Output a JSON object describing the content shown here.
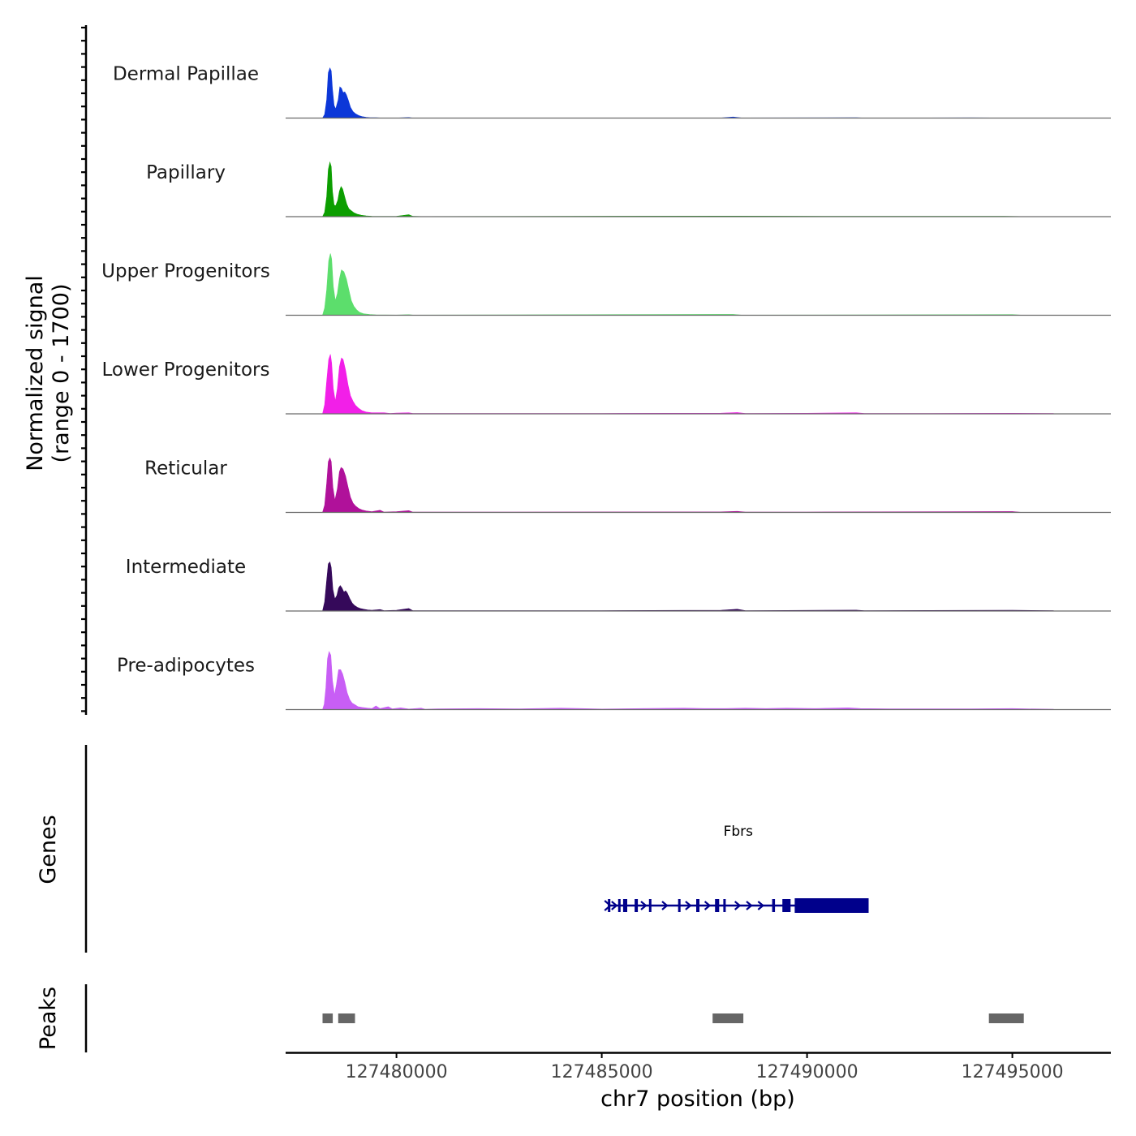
{
  "chart_data": {
    "type": "area",
    "title": "",
    "ylabel_line1": "Normalized signal",
    "ylabel_line2": "(range 0 - 1700)",
    "ylim": [
      0,
      1700
    ],
    "xlabel": "chr7 position (bp)",
    "xlim": [
      127477300,
      127497400
    ],
    "x_ticks": [
      127480000,
      127485000,
      127490000,
      127495000
    ],
    "x_tick_labels": [
      "127480000",
      "127485000",
      "127490000",
      "127495000"
    ],
    "tracks": [
      {
        "name": "Dermal Papillae",
        "color": "#0c37d8",
        "points": [
          [
            127478200,
            0
          ],
          [
            127478250,
            100
          ],
          [
            127478300,
            500
          ],
          [
            127478340,
            1250
          ],
          [
            127478380,
            1380
          ],
          [
            127478410,
            1300
          ],
          [
            127478440,
            800
          ],
          [
            127478480,
            350
          ],
          [
            127478520,
            250
          ],
          [
            127478580,
            500
          ],
          [
            127478620,
            860
          ],
          [
            127478660,
            820
          ],
          [
            127478700,
            700
          ],
          [
            127478740,
            720
          ],
          [
            127478780,
            640
          ],
          [
            127478830,
            480
          ],
          [
            127478880,
            300
          ],
          [
            127478940,
            180
          ],
          [
            127479000,
            120
          ],
          [
            127479080,
            70
          ],
          [
            127479160,
            40
          ],
          [
            127479260,
            20
          ],
          [
            127479360,
            12
          ],
          [
            127479500,
            8
          ],
          [
            127479600,
            4
          ],
          [
            127480000,
            2
          ],
          [
            127480300,
            15
          ],
          [
            127480400,
            2
          ],
          [
            127487900,
            5
          ],
          [
            127488200,
            30
          ],
          [
            127488400,
            5
          ],
          [
            127491200,
            10
          ],
          [
            127491400,
            2
          ],
          [
            127492000,
            4
          ],
          [
            127494000,
            6
          ],
          [
            127495000,
            3
          ]
        ]
      },
      {
        "name": "Papillary",
        "color": "#0c9e00",
        "points": [
          [
            127478200,
            0
          ],
          [
            127478250,
            120
          ],
          [
            127478300,
            550
          ],
          [
            127478340,
            1300
          ],
          [
            127478380,
            1500
          ],
          [
            127478410,
            1380
          ],
          [
            127478440,
            700
          ],
          [
            127478480,
            320
          ],
          [
            127478520,
            300
          ],
          [
            127478570,
            450
          ],
          [
            127478610,
            700
          ],
          [
            127478650,
            830
          ],
          [
            127478690,
            760
          ],
          [
            127478740,
            540
          ],
          [
            127478790,
            340
          ],
          [
            127478840,
            220
          ],
          [
            127478900,
            160
          ],
          [
            127478960,
            110
          ],
          [
            127479040,
            70
          ],
          [
            127479140,
            40
          ],
          [
            127479260,
            22
          ],
          [
            127479400,
            12
          ],
          [
            127479600,
            6
          ],
          [
            127480000,
            10
          ],
          [
            127480300,
            55
          ],
          [
            127480400,
            10
          ],
          [
            127480600,
            4
          ],
          [
            127488200,
            15
          ],
          [
            127491000,
            8
          ],
          [
            127494800,
            12
          ],
          [
            127495200,
            5
          ]
        ]
      },
      {
        "name": "Upper Progenitors",
        "color": "#5cde6c",
        "points": [
          [
            127478200,
            0
          ],
          [
            127478250,
            200
          ],
          [
            127478300,
            700
          ],
          [
            127478350,
            1500
          ],
          [
            127478390,
            1700
          ],
          [
            127478420,
            1550
          ],
          [
            127478460,
            800
          ],
          [
            127478510,
            400
          ],
          [
            127478560,
            600
          ],
          [
            127478610,
            1000
          ],
          [
            127478660,
            1250
          ],
          [
            127478720,
            1200
          ],
          [
            127478780,
            1000
          ],
          [
            127478840,
            700
          ],
          [
            127478900,
            400
          ],
          [
            127478960,
            250
          ],
          [
            127479030,
            150
          ],
          [
            127479100,
            80
          ],
          [
            127479200,
            40
          ],
          [
            127479350,
            20
          ],
          [
            127479500,
            10
          ],
          [
            127480000,
            4
          ],
          [
            127480300,
            15
          ],
          [
            127480400,
            4
          ],
          [
            127488200,
            25
          ],
          [
            127488400,
            5
          ],
          [
            127495000,
            18
          ],
          [
            127495200,
            4
          ]
        ]
      },
      {
        "name": "Lower Progenitors",
        "color": "#f21fe8",
        "points": [
          [
            127478200,
            0
          ],
          [
            127478250,
            250
          ],
          [
            127478300,
            900
          ],
          [
            127478350,
            1500
          ],
          [
            127478390,
            1640
          ],
          [
            127478420,
            1400
          ],
          [
            127478460,
            700
          ],
          [
            127478510,
            350
          ],
          [
            127478560,
            700
          ],
          [
            127478610,
            1300
          ],
          [
            127478660,
            1540
          ],
          [
            127478700,
            1500
          ],
          [
            127478760,
            1200
          ],
          [
            127478820,
            800
          ],
          [
            127478880,
            500
          ],
          [
            127478940,
            350
          ],
          [
            127479000,
            240
          ],
          [
            127479080,
            150
          ],
          [
            127479160,
            90
          ],
          [
            127479260,
            50
          ],
          [
            127479400,
            30
          ],
          [
            127479500,
            30
          ],
          [
            127479700,
            30
          ],
          [
            127479850,
            12
          ],
          [
            127480000,
            20
          ],
          [
            127480300,
            30
          ],
          [
            127480400,
            10
          ],
          [
            127481000,
            8
          ],
          [
            127483000,
            10
          ],
          [
            127485000,
            12
          ],
          [
            127487900,
            18
          ],
          [
            127488300,
            35
          ],
          [
            127488500,
            10
          ],
          [
            127490000,
            15
          ],
          [
            127491200,
            30
          ],
          [
            127491400,
            10
          ],
          [
            127493000,
            12
          ],
          [
            127495000,
            16
          ],
          [
            127496000,
            10
          ]
        ]
      },
      {
        "name": "Reticular",
        "color": "#b0119a",
        "points": [
          [
            127478200,
            0
          ],
          [
            127478250,
            200
          ],
          [
            127478300,
            800
          ],
          [
            127478340,
            1400
          ],
          [
            127478380,
            1500
          ],
          [
            127478410,
            1400
          ],
          [
            127478450,
            700
          ],
          [
            127478500,
            330
          ],
          [
            127478560,
            650
          ],
          [
            127478610,
            1120
          ],
          [
            127478650,
            1240
          ],
          [
            127478700,
            1200
          ],
          [
            127478760,
            1000
          ],
          [
            127478820,
            700
          ],
          [
            127478880,
            420
          ],
          [
            127478940,
            260
          ],
          [
            127479000,
            180
          ],
          [
            127479080,
            110
          ],
          [
            127479160,
            70
          ],
          [
            127479260,
            40
          ],
          [
            127479400,
            20
          ],
          [
            127479600,
            60
          ],
          [
            127479700,
            10
          ],
          [
            127480000,
            20
          ],
          [
            127480300,
            50
          ],
          [
            127480400,
            10
          ],
          [
            127481000,
            8
          ],
          [
            127487900,
            15
          ],
          [
            127488300,
            30
          ],
          [
            127488500,
            8
          ],
          [
            127490000,
            12
          ],
          [
            127495000,
            25
          ],
          [
            127495200,
            5
          ]
        ]
      },
      {
        "name": "Intermediate",
        "color": "#35095a",
        "points": [
          [
            127478200,
            0
          ],
          [
            127478250,
            250
          ],
          [
            127478300,
            850
          ],
          [
            127478340,
            1300
          ],
          [
            127478380,
            1350
          ],
          [
            127478410,
            1200
          ],
          [
            127478450,
            600
          ],
          [
            127478500,
            330
          ],
          [
            127478550,
            430
          ],
          [
            127478590,
            630
          ],
          [
            127478630,
            700
          ],
          [
            127478670,
            640
          ],
          [
            127478720,
            520
          ],
          [
            127478760,
            560
          ],
          [
            127478800,
            500
          ],
          [
            127478860,
            350
          ],
          [
            127478920,
            220
          ],
          [
            127478980,
            150
          ],
          [
            127479050,
            100
          ],
          [
            127479120,
            70
          ],
          [
            127479200,
            50
          ],
          [
            127479300,
            30
          ],
          [
            127479400,
            20
          ],
          [
            127479600,
            40
          ],
          [
            127479700,
            10
          ],
          [
            127480000,
            20
          ],
          [
            127480300,
            70
          ],
          [
            127480400,
            10
          ],
          [
            127481000,
            8
          ],
          [
            127483000,
            10
          ],
          [
            127485000,
            12
          ],
          [
            127487900,
            20
          ],
          [
            127488300,
            50
          ],
          [
            127488500,
            10
          ],
          [
            127490000,
            18
          ],
          [
            127491200,
            25
          ],
          [
            127491400,
            10
          ],
          [
            127493000,
            15
          ],
          [
            127495000,
            20
          ],
          [
            127496000,
            10
          ]
        ]
      },
      {
        "name": "Pre-adipocytes",
        "color": "#c85ef5",
        "points": [
          [
            127478200,
            0
          ],
          [
            127478240,
            150
          ],
          [
            127478280,
            600
          ],
          [
            127478320,
            1400
          ],
          [
            127478360,
            1600
          ],
          [
            127478400,
            1500
          ],
          [
            127478440,
            800
          ],
          [
            127478490,
            400
          ],
          [
            127478540,
            700
          ],
          [
            127478590,
            1100
          ],
          [
            127478640,
            1100
          ],
          [
            127478690,
            980
          ],
          [
            127478740,
            760
          ],
          [
            127478800,
            460
          ],
          [
            127478860,
            280
          ],
          [
            127478920,
            180
          ],
          [
            127478980,
            140
          ],
          [
            127479060,
            80
          ],
          [
            127479160,
            60
          ],
          [
            127479300,
            40
          ],
          [
            127479400,
            30
          ],
          [
            127479500,
            100
          ],
          [
            127479600,
            30
          ],
          [
            127479800,
            80
          ],
          [
            127479900,
            20
          ],
          [
            127480100,
            50
          ],
          [
            127480300,
            15
          ],
          [
            127480600,
            40
          ],
          [
            127480700,
            10
          ],
          [
            127481000,
            20
          ],
          [
            127482000,
            30
          ],
          [
            127483000,
            20
          ],
          [
            127484000,
            40
          ],
          [
            127484500,
            30
          ],
          [
            127485000,
            15
          ],
          [
            127486000,
            30
          ],
          [
            127487000,
            40
          ],
          [
            127487500,
            30
          ],
          [
            127488000,
            30
          ],
          [
            127488500,
            40
          ],
          [
            127489000,
            30
          ],
          [
            127489500,
            40
          ],
          [
            127490200,
            30
          ],
          [
            127491000,
            50
          ],
          [
            127491300,
            30
          ],
          [
            127492000,
            20
          ],
          [
            127493000,
            20
          ],
          [
            127494000,
            20
          ],
          [
            127495000,
            30
          ],
          [
            127496000,
            10
          ]
        ]
      }
    ],
    "genes_label": "Genes",
    "gene": {
      "name": "Fbrs",
      "color": "#00008b",
      "start": 127485150,
      "end": 127491500,
      "strand": "+",
      "thick_start": 127489700,
      "exons": [
        [
          127485150,
          127485200
        ],
        [
          127485400,
          127485450
        ],
        [
          127485520,
          127485620
        ],
        [
          127485800,
          127485880
        ],
        [
          127486150,
          127486200
        ],
        [
          127486860,
          127486900
        ],
        [
          127487300,
          127487380
        ],
        [
          127487760,
          127487860
        ],
        [
          127487960,
          127488020
        ],
        [
          127489150,
          127489220
        ],
        [
          127489400,
          127489600
        ],
        [
          127489700,
          127491500
        ]
      ]
    },
    "peaks_label": "Peaks",
    "peaks": [
      [
        127478200,
        127478450
      ],
      [
        127478580,
        127478990
      ],
      [
        127487700,
        127488450
      ],
      [
        127494430,
        127495280
      ]
    ],
    "peak_color": "#666666"
  }
}
